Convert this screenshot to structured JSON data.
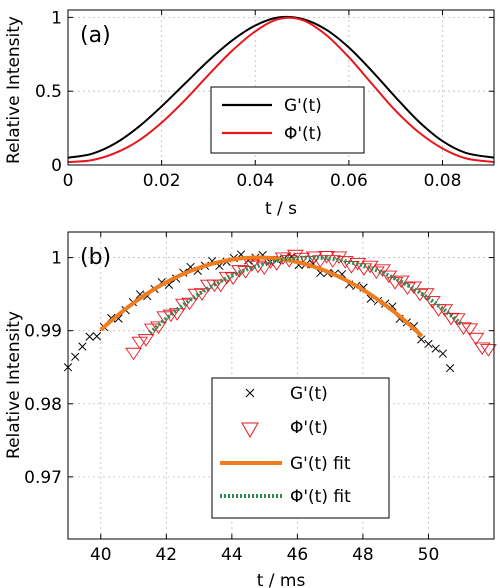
{
  "chart_data": [
    {
      "type": "line",
      "panel_label": "(a)",
      "xlabel": "t / s",
      "ylabel": "Relative Intensity",
      "xlim": [
        0,
        0.091
      ],
      "ylim": [
        0,
        1.05
      ],
      "xticks": [
        "0",
        "0.02",
        "0.04",
        "0.06",
        "0.08"
      ],
      "xtick_values": [
        0,
        0.02,
        0.04,
        0.06,
        0.08
      ],
      "yticks": [
        "0",
        "0.5",
        "1"
      ],
      "ytick_values": [
        0,
        0.5,
        1
      ],
      "grid": true,
      "legend_position": "bottom-center",
      "series": [
        {
          "name": "G'(t)",
          "color": "#000000",
          "x": [
            0,
            0.005,
            0.01,
            0.015,
            0.02,
            0.025,
            0.03,
            0.035,
            0.04,
            0.045,
            0.05,
            0.055,
            0.06,
            0.065,
            0.07,
            0.075,
            0.08,
            0.085,
            0.091
          ],
          "y": [
            0.05,
            0.075,
            0.145,
            0.256,
            0.397,
            0.552,
            0.706,
            0.842,
            0.945,
            1.0,
            0.99,
            0.92,
            0.796,
            0.634,
            0.458,
            0.292,
            0.162,
            0.082,
            0.05
          ]
        },
        {
          "name": "Φ'(t)",
          "color": "#e8151b",
          "x": [
            0,
            0.005,
            0.01,
            0.015,
            0.02,
            0.025,
            0.03,
            0.035,
            0.04,
            0.045,
            0.05,
            0.055,
            0.06,
            0.065,
            0.07,
            0.075,
            0.08,
            0.085,
            0.091
          ],
          "y": [
            0.02,
            0.032,
            0.08,
            0.163,
            0.287,
            0.44,
            0.61,
            0.772,
            0.905,
            0.989,
            0.983,
            0.885,
            0.73,
            0.547,
            0.367,
            0.22,
            0.112,
            0.045,
            0.02
          ]
        }
      ]
    },
    {
      "type": "scatter",
      "panel_label": "(b)",
      "xlabel": "t / ms",
      "ylabel": "Relative Intensity",
      "xlim": [
        39,
        52
      ],
      "ylim": [
        0.9615,
        1.0035
      ],
      "xticks": [
        "40",
        "42",
        "44",
        "46",
        "48",
        "50"
      ],
      "xtick_values": [
        40,
        42,
        44,
        46,
        48,
        50
      ],
      "yticks": [
        "0.97",
        "0.98",
        "0.99",
        "1"
      ],
      "ytick_values": [
        0.97,
        0.98,
        0.99,
        1.0
      ],
      "grid": true,
      "legend_position": "bottom-center",
      "series": [
        {
          "name": "G'(t)",
          "color": "#000000",
          "marker": "x",
          "peak_x": 44.8,
          "range": [
            39,
            50.8
          ],
          "step": 0.22
        },
        {
          "name": "Φ'(t)",
          "color": "#e8151b",
          "marker": "triangle-down",
          "peak_x": 46.4,
          "range": [
            41,
            52
          ],
          "step": 0.19
        },
        {
          "name": "G'(t) fit",
          "color": "#f07c1e",
          "style": "solid",
          "peak_x": 44.8,
          "range": [
            40,
            49.8
          ]
        },
        {
          "name": "Φ'(t) fit",
          "color": "#2e8b57",
          "style": "dotted",
          "peak_x": 46.4,
          "range": [
            41.5,
            51
          ]
        }
      ]
    }
  ]
}
